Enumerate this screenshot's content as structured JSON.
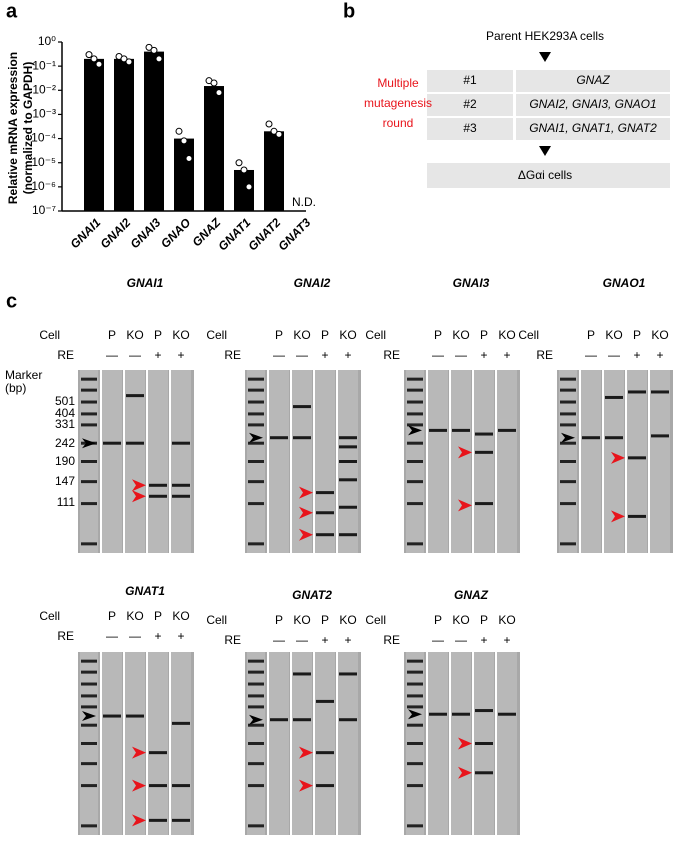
{
  "panel_labels": [
    "a",
    "b",
    "c"
  ],
  "chart_data": {
    "type": "bar",
    "y_label": [
      "Relative mRNA expression",
      "(normalized to GAPDH)"
    ],
    "categories": [
      "GNAI1",
      "GNAI2",
      "GNAI3",
      "GNAO",
      "GNAZ",
      "GNAT1",
      "GNAT2",
      "GNAT3"
    ],
    "values": [
      0.2,
      0.2,
      0.4,
      0.0001,
      0.015,
      5e-06,
      0.0002,
      null
    ],
    "value_labels": [
      null,
      null,
      null,
      null,
      null,
      null,
      null,
      "N.D."
    ],
    "replicates": [
      [
        0.3,
        0.2,
        0.12
      ],
      [
        0.25,
        0.2,
        0.15
      ],
      [
        0.6,
        0.45,
        0.2
      ],
      [
        0.0002,
        8e-05,
        1.5e-05
      ],
      [
        0.025,
        0.02,
        0.008
      ],
      [
        1e-05,
        5e-06,
        1e-06
      ],
      [
        0.0004,
        0.0002,
        0.00015
      ],
      []
    ],
    "color": "#000000",
    "yscale": "log",
    "ylim": [
      1e-07,
      1
    ],
    "yticks": [
      {
        "value": 1,
        "label": "10⁰"
      },
      {
        "value": 0.1,
        "label": "10⁻¹"
      },
      {
        "value": 0.01,
        "label": "10⁻²"
      },
      {
        "value": 0.001,
        "label": "10⁻³"
      },
      {
        "value": 0.0001,
        "label": "10⁻⁴"
      },
      {
        "value": 1e-05,
        "label": "10⁻⁵"
      },
      {
        "value": 1e-06,
        "label": "10⁻⁶"
      },
      {
        "value": 1e-07,
        "label": "10⁻⁷"
      }
    ]
  },
  "diagram": {
    "source": "Parent HEK293A cells",
    "note": [
      "Multiple",
      "mutagenesis",
      "round"
    ],
    "rounds": [
      [
        "#1",
        "GNAZ"
      ],
      [
        "#2",
        "GNAI2, GNAI3, GNAO1"
      ],
      [
        "#3",
        "GNAI1, GNAT1, GNAT2"
      ]
    ],
    "result": "ΔGαi cells"
  },
  "gels": {
    "cell_label": "Cell",
    "re_label": "RE",
    "lane_cells": [
      "P",
      "KO",
      "P",
      "KO"
    ],
    "lane_re": [
      "—",
      "—",
      "+",
      "+"
    ],
    "marker_title": [
      "Marker",
      "(bp)"
    ],
    "marker_sizes": [
      501,
      404,
      331,
      242,
      190,
      147,
      111
    ],
    "genes": [
      "GNAI1",
      "GNAI2",
      "GNAI3",
      "GNAO1",
      "GNAT1",
      "GNAT2",
      "GNAZ"
    ]
  }
}
